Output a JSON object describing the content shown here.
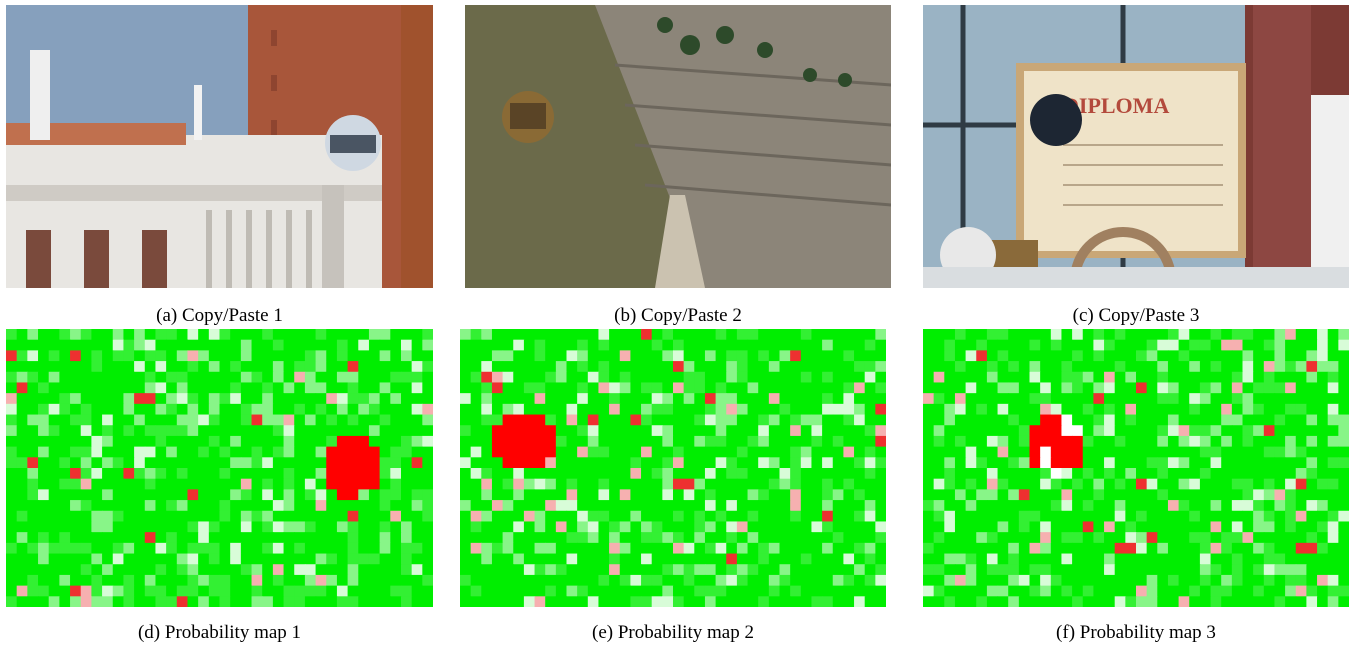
{
  "figure": {
    "panels": [
      {
        "caption": "(a) Copy/Paste 1",
        "kind": "photo",
        "scene": "venice"
      },
      {
        "caption": "(b) Copy/Paste 2",
        "kind": "photo",
        "scene": "mountain"
      },
      {
        "caption": "(c) Copy/Paste 3",
        "kind": "photo",
        "scene": "diploma"
      },
      {
        "caption": "(d) Probability map 1",
        "kind": "map",
        "seed": 11
      },
      {
        "caption": "(e) Probability map 2",
        "kind": "map",
        "seed": 27
      },
      {
        "caption": "(f) Probability map 3",
        "kind": "map",
        "seed": 53
      }
    ],
    "diploma_text": "DIPLOMA",
    "colors": {
      "map_green": "#00ee00",
      "map_red": "#ff0000",
      "map_white": "#ffffff"
    }
  }
}
